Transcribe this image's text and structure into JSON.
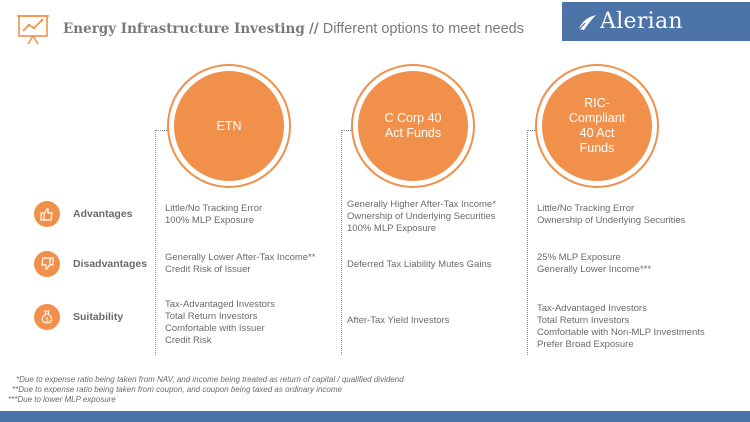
{
  "header": {
    "title_bold": "Energy Infrastructure Investing",
    "separator": "//",
    "title_rest": "Different options to meet needs",
    "logo_text": "Alerian",
    "brand_color": "#4d74a9",
    "accent_color": "#f0904a",
    "icon": "presentation-chart-icon"
  },
  "columns": [
    {
      "label": "ETN"
    },
    {
      "label": "C Corp 40 Act Funds"
    },
    {
      "label": "RIC-Compliant 40 Act Funds"
    }
  ],
  "rows": [
    {
      "label": "Advantages",
      "icon": "thumbs-up-icon",
      "cells": [
        [
          "Little/No Tracking Error",
          "100% MLP Exposure"
        ],
        [
          "Generally Higher After-Tax Income*",
          "Ownership of Underlying Securities",
          "100% MLP Exposure"
        ],
        [
          "Little/No Tracking Error",
          "Ownership of Underlying Securities"
        ]
      ]
    },
    {
      "label": "Disadvantages",
      "icon": "thumbs-down-icon",
      "cells": [
        [
          "Generally Lower After-Tax Income**",
          "Credit Risk of Issuer"
        ],
        [
          "Deferred Tax Liability Mutes Gains"
        ],
        [
          "25% MLP Exposure",
          "Generally Lower Income***"
        ]
      ]
    },
    {
      "label": "Suitability",
      "icon": "money-bag-icon",
      "cells": [
        [
          "Tax-Advantaged Investors",
          "Total Return Investors",
          "Comfortable with Issuer",
          "Credit Risk"
        ],
        [
          "After-Tax Yield Investors"
        ],
        [
          "Tax-Advantaged Investors",
          "Total Return Investors",
          "Comfortable with Non-MLP Investments",
          "Prefer Broad Exposure"
        ]
      ]
    }
  ],
  "footnotes": [
    "*Due to expense ratio being taken from NAV, and income being treated as return of capital / qualified dividend",
    "**Due to expense ratio being taken from coupon, and coupon being taxed as ordinary income",
    "***Due to lower MLP exposure"
  ]
}
